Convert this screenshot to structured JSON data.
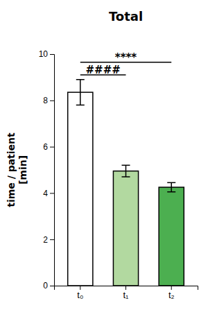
{
  "chart_data": {
    "type": "bar",
    "title": "Total",
    "categories": [
      "t₀",
      "t₁",
      "t₂"
    ],
    "values": [
      8.35,
      4.95,
      4.25
    ],
    "errors": [
      0.55,
      0.25,
      0.2
    ],
    "colors": [
      "#FFFFFF",
      "#B2D9A0",
      "#4CAF50"
    ],
    "ylabel": "time / patient\n[min]",
    "ylim": [
      0,
      10
    ],
    "yticks": [
      0,
      2,
      4,
      6,
      8,
      10
    ],
    "grid": false,
    "annotations": [
      {
        "text": "****",
        "from": "t₀",
        "to": "t₂",
        "y": 9.65,
        "text_y": 9.68
      },
      {
        "text": "####",
        "from": "t₀",
        "to": "t₁",
        "y": 9.1,
        "text_y": 9.13
      }
    ]
  }
}
